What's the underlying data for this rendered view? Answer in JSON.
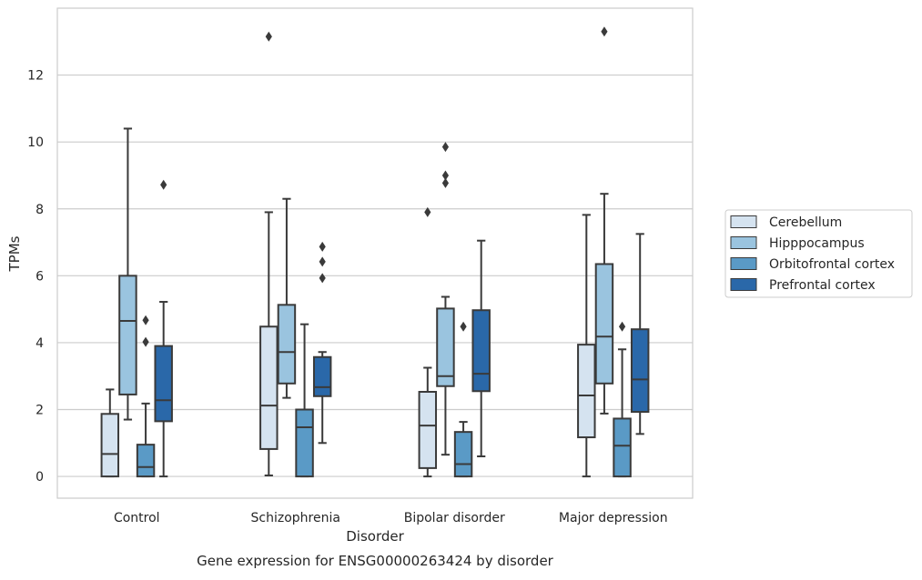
{
  "caption": "Gene expression for ENSG00000263424 by disorder",
  "chart_data": {
    "type": "boxplot",
    "xlabel": "Disorder",
    "ylabel": "TPMs",
    "ylim": [
      -0.65,
      14
    ],
    "yticks": [
      0,
      2,
      4,
      6,
      8,
      10,
      12
    ],
    "grid": "horizontal",
    "legend_position": "right",
    "categories": [
      "Control",
      "Schizophrenia",
      "Bipolar disorder",
      "Major depression"
    ],
    "series": [
      {
        "name": "Cerebellum",
        "color": "#d5e3f0",
        "boxes": [
          {
            "whislo": 0.0,
            "q1": 0.0,
            "med": 0.67,
            "q3": 1.87,
            "whishi": 2.6,
            "fliers": []
          },
          {
            "whislo": 0.03,
            "q1": 0.82,
            "med": 2.12,
            "q3": 4.48,
            "whishi": 7.9,
            "fliers": [
              13.15
            ]
          },
          {
            "whislo": 0.0,
            "q1": 0.25,
            "med": 1.52,
            "q3": 2.53,
            "whishi": 3.25,
            "fliers": [
              7.9
            ]
          },
          {
            "whislo": 0.0,
            "q1": 1.17,
            "med": 2.42,
            "q3": 3.94,
            "whishi": 7.82,
            "fliers": []
          }
        ]
      },
      {
        "name": "Hipppocampus",
        "color": "#9ac4df",
        "boxes": [
          {
            "whislo": 1.7,
            "q1": 2.45,
            "med": 4.65,
            "q3": 6.0,
            "whishi": 10.4,
            "fliers": []
          },
          {
            "whislo": 2.35,
            "q1": 2.78,
            "med": 3.72,
            "q3": 5.13,
            "whishi": 8.3,
            "fliers": []
          },
          {
            "whislo": 0.65,
            "q1": 2.7,
            "med": 3.0,
            "q3": 5.02,
            "whishi": 5.37,
            "fliers": [
              8.77,
              9.0,
              9.85
            ]
          },
          {
            "whislo": 1.88,
            "q1": 2.78,
            "med": 4.18,
            "q3": 6.35,
            "whishi": 8.45,
            "fliers": [
              13.3
            ]
          }
        ]
      },
      {
        "name": "Orbitofrontal cortex",
        "color": "#5a9ac6",
        "boxes": [
          {
            "whislo": 0.0,
            "q1": 0.0,
            "med": 0.28,
            "q3": 0.95,
            "whishi": 2.18,
            "fliers": [
              4.02,
              4.67
            ]
          },
          {
            "whislo": 0.0,
            "q1": 0.0,
            "med": 1.47,
            "q3": 2.0,
            "whishi": 4.55,
            "fliers": []
          },
          {
            "whislo": 0.0,
            "q1": 0.0,
            "med": 0.37,
            "q3": 1.33,
            "whishi": 1.63,
            "fliers": [
              4.48
            ]
          },
          {
            "whislo": 0.0,
            "q1": 0.0,
            "med": 0.92,
            "q3": 1.73,
            "whishi": 3.8,
            "fliers": [
              4.48
            ]
          }
        ]
      },
      {
        "name": "Prefrontal cortex",
        "color": "#2a68a9",
        "boxes": [
          {
            "whislo": 0.0,
            "q1": 1.65,
            "med": 2.28,
            "q3": 3.9,
            "whishi": 5.22,
            "fliers": [
              8.72
            ]
          },
          {
            "whislo": 1.0,
            "q1": 2.4,
            "med": 2.67,
            "q3": 3.57,
            "whishi": 3.72,
            "fliers": [
              5.93,
              6.42,
              6.87
            ]
          },
          {
            "whislo": 0.6,
            "q1": 2.55,
            "med": 3.07,
            "q3": 4.97,
            "whishi": 7.05,
            "fliers": []
          },
          {
            "whislo": 1.27,
            "q1": 1.93,
            "med": 2.9,
            "q3": 4.4,
            "whishi": 7.25,
            "fliers": []
          }
        ]
      }
    ]
  }
}
